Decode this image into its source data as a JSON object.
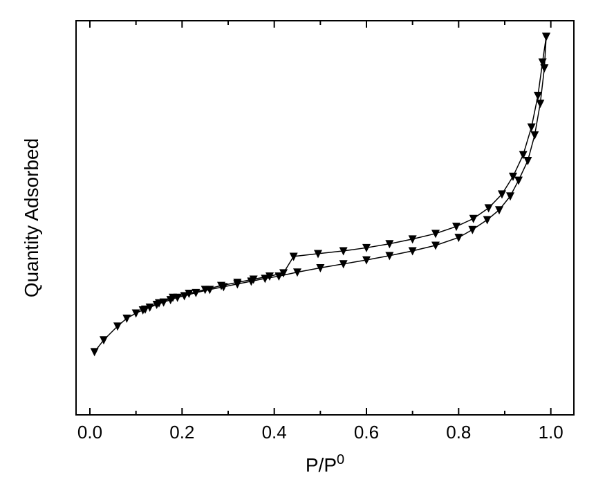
{
  "isotherm_chart": {
    "type": "line",
    "title": null,
    "xlabel_main": "P/P",
    "xlabel_sup": "0",
    "ylabel": "Quantity Adsorbed",
    "xlim": [
      -0.03,
      1.05
    ],
    "ylim": [
      0,
      10
    ],
    "x_ticks": [
      0.0,
      0.2,
      0.4,
      0.6,
      0.8,
      1.0
    ],
    "x_minor_step": 0.1,
    "y_show_ticks": false,
    "label_fontsize": 28,
    "tick_fontsize": 26,
    "background_color": "#ffffff",
    "axis_color": "#000000",
    "line_color": "#000000",
    "line_width": 1.5,
    "marker_style": "triangle-down",
    "marker_size": 12,
    "marker_color": "#000000",
    "axes_box": true,
    "ticks_both_sides": true,
    "tick_length_major": 10,
    "tick_length_minor": 6,
    "series": {
      "adsorption": {
        "x": [
          0.01,
          0.03,
          0.06,
          0.08,
          0.1,
          0.115,
          0.13,
          0.145,
          0.16,
          0.175,
          0.19,
          0.205,
          0.23,
          0.26,
          0.29,
          0.32,
          0.35,
          0.38,
          0.41,
          0.45,
          0.5,
          0.55,
          0.6,
          0.65,
          0.7,
          0.75,
          0.8,
          0.83,
          0.862,
          0.888,
          0.912,
          0.93,
          0.95,
          0.965,
          0.977,
          0.986,
          0.99
        ],
        "y": [
          1.6,
          1.9,
          2.25,
          2.45,
          2.58,
          2.66,
          2.73,
          2.8,
          2.86,
          2.92,
          2.98,
          3.02,
          3.1,
          3.18,
          3.25,
          3.32,
          3.39,
          3.46,
          3.52,
          3.62,
          3.73,
          3.83,
          3.93,
          4.04,
          4.16,
          4.3,
          4.5,
          4.7,
          4.95,
          5.2,
          5.55,
          5.95,
          6.45,
          7.1,
          7.9,
          8.8,
          9.6
        ]
      },
      "desorption": {
        "x": [
          0.99,
          0.982,
          0.972,
          0.958,
          0.94,
          0.918,
          0.894,
          0.865,
          0.832,
          0.795,
          0.75,
          0.7,
          0.65,
          0.6,
          0.55,
          0.495,
          0.442,
          0.42,
          0.39,
          0.355,
          0.32,
          0.285,
          0.25,
          0.215,
          0.18,
          0.15,
          0.12
        ],
        "y": [
          9.6,
          8.95,
          8.1,
          7.3,
          6.6,
          6.05,
          5.6,
          5.25,
          4.98,
          4.78,
          4.6,
          4.46,
          4.34,
          4.24,
          4.16,
          4.09,
          4.02,
          3.6,
          3.52,
          3.44,
          3.36,
          3.28,
          3.18,
          3.08,
          2.98,
          2.84,
          2.68
        ]
      }
    }
  }
}
